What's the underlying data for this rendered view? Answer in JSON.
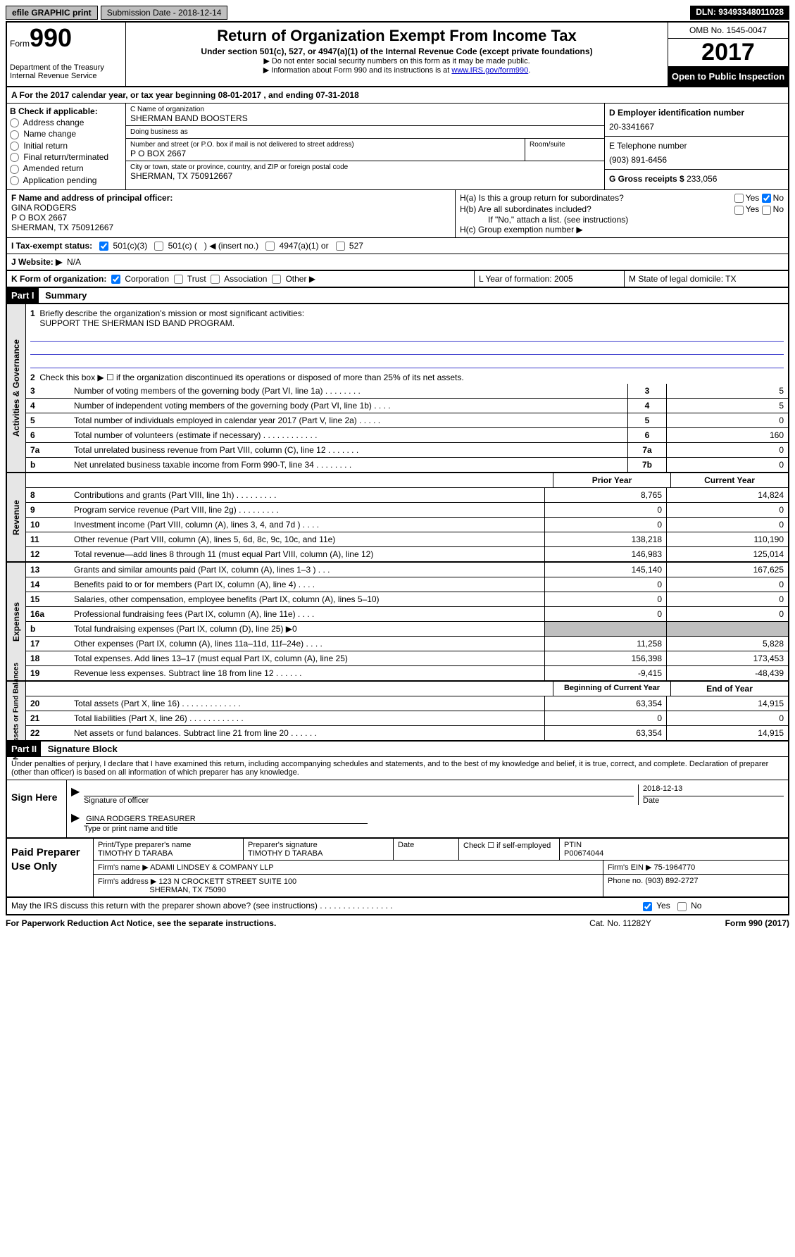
{
  "topbar": {
    "btn": "efile GRAPHIC print",
    "sub": "Submission Date - 2018-12-14",
    "dln": "DLN: 93493348011028"
  },
  "header": {
    "form_word": "Form",
    "form_no": "990",
    "dept1": "Department of the Treasury",
    "dept2": "Internal Revenue Service",
    "title": "Return of Organization Exempt From Income Tax",
    "sub1": "Under section 501(c), 527, or 4947(a)(1) of the Internal Revenue Code (except private foundations)",
    "sub2a": "▶ Do not enter social security numbers on this form as it may be made public.",
    "sub2b": "▶ Information about Form 990 and its instructions is at ",
    "link": "www.IRS.gov/form990",
    "omb": "OMB No. 1545-0047",
    "year": "2017",
    "open": "Open to Public Inspection"
  },
  "rowA": "A   For the 2017 calendar year, or tax year beginning 08-01-2017    , and ending 07-31-2018",
  "colB": {
    "hdr": "B Check if applicable:",
    "items": [
      "Address change",
      "Name change",
      "Initial return",
      "Final return/terminated",
      "Amended return",
      "Application pending"
    ]
  },
  "colC": {
    "name_lbl": "C Name of organization",
    "name": "SHERMAN BAND BOOSTERS",
    "dba_lbl": "Doing business as",
    "dba": "",
    "addr_lbl": "Number and street (or P.O. box if mail is not delivered to street address)",
    "room_lbl": "Room/suite",
    "addr": "P O BOX 2667",
    "city_lbl": "City or town, state or province, country, and ZIP or foreign postal code",
    "city": "SHERMAN, TX  750912667"
  },
  "colD": {
    "ein_lbl": "D Employer identification number",
    "ein": "20-3341667",
    "tel_lbl": "E Telephone number",
    "tel": "(903) 891-6456",
    "gross_lbl": "G Gross receipts $",
    "gross": "233,056"
  },
  "rowF": {
    "lbl": "F  Name and address of principal officer:",
    "l1": "GINA RODGERS",
    "l2": "P O BOX 2667",
    "l3": "SHERMAN, TX  750912667"
  },
  "rowH": {
    "ha": "H(a)  Is this a group return for subordinates?",
    "hb": "H(b)  Are all subordinates included?",
    "hb2": "If \"No,\" attach a list. (see instructions)",
    "hc": "H(c)  Group exemption number ▶",
    "yes": "Yes",
    "no": "No"
  },
  "rowI": {
    "lbl": "I   Tax-exempt status:",
    "o1": "501(c)(3)",
    "o2": "501(c) (",
    "o2b": ") ◀ (insert no.)",
    "o3": "4947(a)(1) or",
    "o4": "527"
  },
  "rowJ": {
    "lbl": "J  Website: ▶",
    "val": "N/A"
  },
  "rowK": {
    "lbl": "K Form of organization:",
    "o1": "Corporation",
    "o2": "Trust",
    "o3": "Association",
    "o4": "Other ▶",
    "L": "L Year of formation: 2005",
    "M": "M State of legal domicile: TX"
  },
  "part1": {
    "hdr": "Part I",
    "title": "Summary"
  },
  "gov": {
    "l1": "Briefly describe the organization's mission or most significant activities:",
    "l1v": "SUPPORT THE SHERMAN ISD BAND PROGRAM.",
    "l2": "Check this box ▶ ☐  if the organization discontinued its operations or disposed of more than 25% of its net assets.",
    "rows": [
      {
        "n": "3",
        "t": "Number of voting members of the governing body (Part VI, line 1a)   .   .   .   .   .   .   .   .",
        "b": "3",
        "v": "5"
      },
      {
        "n": "4",
        "t": "Number of independent voting members of the governing body (Part VI, line 1b)    .   .   .   .",
        "b": "4",
        "v": "5"
      },
      {
        "n": "5",
        "t": "Total number of individuals employed in calendar year 2017 (Part V, line 2a)   .   .   .   .   .",
        "b": "5",
        "v": "0"
      },
      {
        "n": "6",
        "t": "Total number of volunteers (estimate if necessary)   .   .   .   .   .   .   .   .   .   .   .   .",
        "b": "6",
        "v": "160"
      },
      {
        "n": "7a",
        "t": "Total unrelated business revenue from Part VIII, column (C), line 12   .   .   .   .   .   .   .",
        "b": "7a",
        "v": "0"
      },
      {
        "n": "b",
        "t": "Net unrelated business taxable income from Form 990-T, line 34   .   .   .   .   .   .   .   .",
        "b": "7b",
        "v": "0"
      }
    ]
  },
  "rev": {
    "h1": "Prior Year",
    "h2": "Current Year",
    "rows": [
      {
        "n": "8",
        "t": "Contributions and grants (Part VIII, line 1h)    .   .   .   .   .   .   .   .   .",
        "p": "8,765",
        "c": "14,824"
      },
      {
        "n": "9",
        "t": "Program service revenue (Part VIII, line 2g)   .   .   .   .   .   .   .   .   .",
        "p": "0",
        "c": "0"
      },
      {
        "n": "10",
        "t": "Investment income (Part VIII, column (A), lines 3, 4, and 7d )   .   .   .   .",
        "p": "0",
        "c": "0"
      },
      {
        "n": "11",
        "t": "Other revenue (Part VIII, column (A), lines 5, 6d, 8c, 9c, 10c, and 11e)",
        "p": "138,218",
        "c": "110,190"
      },
      {
        "n": "12",
        "t": "Total revenue—add lines 8 through 11 (must equal Part VIII, column (A), line 12)",
        "p": "146,983",
        "c": "125,014"
      }
    ]
  },
  "exp": {
    "rows": [
      {
        "n": "13",
        "t": "Grants and similar amounts paid (Part IX, column (A), lines 1–3 )   .   .   .",
        "p": "145,140",
        "c": "167,625"
      },
      {
        "n": "14",
        "t": "Benefits paid to or for members (Part IX, column (A), line 4)   .   .   .   .",
        "p": "0",
        "c": "0"
      },
      {
        "n": "15",
        "t": "Salaries, other compensation, employee benefits (Part IX, column (A), lines 5–10)",
        "p": "0",
        "c": "0"
      },
      {
        "n": "16a",
        "t": "Professional fundraising fees (Part IX, column (A), line 11e)    .   .   .   .",
        "p": "0",
        "c": "0"
      },
      {
        "n": "b",
        "t": "Total fundraising expenses (Part IX, column (D), line 25) ▶0",
        "p": "__shade__",
        "c": "__shade__"
      },
      {
        "n": "17",
        "t": "Other expenses (Part IX, column (A), lines 11a–11d, 11f–24e)    .   .   .   .",
        "p": "11,258",
        "c": "5,828"
      },
      {
        "n": "18",
        "t": "Total expenses. Add lines 13–17 (must equal Part IX, column (A), line 25)",
        "p": "156,398",
        "c": "173,453"
      },
      {
        "n": "19",
        "t": "Revenue less expenses. Subtract line 18 from line 12   .   .   .   .   .   .",
        "p": "-9,415",
        "c": "-48,439"
      }
    ]
  },
  "net": {
    "h1": "Beginning of Current Year",
    "h2": "End of Year",
    "rows": [
      {
        "n": "20",
        "t": "Total assets (Part X, line 16)   .   .   .   .   .   .   .   .   .   .   .   .   .",
        "p": "63,354",
        "c": "14,915"
      },
      {
        "n": "21",
        "t": "Total liabilities (Part X, line 26)   .   .   .   .   .   .   .   .   .   .   .   .",
        "p": "0",
        "c": "0"
      },
      {
        "n": "22",
        "t": "Net assets or fund balances. Subtract line 21 from line 20 .   .   .   .   .   .",
        "p": "63,354",
        "c": "14,915"
      }
    ]
  },
  "part2": {
    "hdr": "Part II",
    "title": "Signature Block"
  },
  "sig": {
    "perjury": "Under penalties of perjury, I declare that I have examined this return, including accompanying schedules and statements, and to the best of my knowledge and belief, it is true, correct, and complete. Declaration of preparer (other than officer) is based on all information of which preparer has any knowledge.",
    "sign_here": "Sign Here",
    "sig_off": "Signature of officer",
    "date_v": "2018-12-13",
    "date": "Date",
    "name": "GINA RODGERS TREASURER",
    "name_lbl": "Type or print name and title"
  },
  "paid": {
    "hdr": "Paid Preparer Use Only",
    "r1a": "Print/Type preparer's name",
    "r1av": "TIMOTHY D TARABA",
    "r1b": "Preparer's signature",
    "r1bv": "TIMOTHY D TARABA",
    "r1c": "Date",
    "r1d": "Check ☐ if self-employed",
    "r1e": "PTIN",
    "r1ev": "P00674044",
    "r2a": "Firm's name      ▶",
    "r2av": "ADAMI LINDSEY & COMPANY LLP",
    "r2b": "Firm's EIN ▶",
    "r2bv": "75-1964770",
    "r3a": "Firm's address ▶",
    "r3av": "123 N CROCKETT STREET SUITE 100",
    "r3av2": "SHERMAN, TX  75090",
    "r3b": "Phone no.",
    "r3bv": "(903) 892-2727"
  },
  "footer": {
    "q": "May the IRS discuss this return with the preparer shown above? (see instructions)   .   .   .   .   .   .   .   .   .   .   .   .   .   .   .   .",
    "yes": "Yes",
    "no": "No"
  },
  "pra": {
    "a": "For Paperwork Reduction Act Notice, see the separate instructions.",
    "b": "Cat. No. 11282Y",
    "c": "Form 990 (2017)"
  },
  "vtabs": {
    "gov": "Activities & Governance",
    "rev": "Revenue",
    "exp": "Expenses",
    "net": "Net Assets or Fund Balances"
  }
}
